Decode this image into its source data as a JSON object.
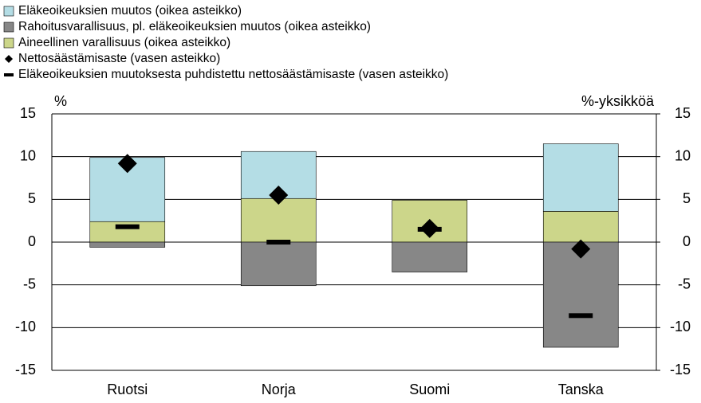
{
  "chart_data": {
    "type": "stacked_bar",
    "y_label": "%",
    "y2_label": "%-yksikköä",
    "categories": [
      "Ruotsi",
      "Norja",
      "Suomi",
      "Tanska"
    ],
    "series": [
      {
        "name": "Eläkeoikeuksien muutos (oikea asteikko)",
        "color": "#b4dde5",
        "axis": "y2",
        "values": [
          7.5,
          5.5,
          0,
          7.9
        ]
      },
      {
        "name": "Rahoitusvarallisuus, pl. eläkeoikeuksien muutos (oikea asteikko)",
        "color": "#878787",
        "axis": "y2",
        "values": [
          -0.6,
          -5.1,
          -3.5,
          -12.3
        ]
      },
      {
        "name": "Aineellinen varallisuus (oikea asteikko)",
        "color": "#ccd68a",
        "axis": "y2",
        "values": [
          2.4,
          5.1,
          4.9,
          3.6
        ]
      },
      {
        "name": "Nettosäästämisaste (vasen asteikko)",
        "color": "#000000",
        "marker": "diamond",
        "values": [
          9.2,
          5.5,
          1.6,
          -0.8
        ]
      },
      {
        "name": "Eläkeoikeuksien muutoksesta puhdistettu nettosäästämisaste (vasen asteikko)",
        "color": "#000000",
        "marker": "dash",
        "values": [
          1.8,
          0,
          1.5,
          -8.6
        ]
      }
    ],
    "ylim": [
      -15,
      15
    ],
    "yticks": [
      -15,
      -10,
      -5,
      0,
      5,
      10,
      15
    ],
    "y2lim": [
      -15,
      15
    ],
    "y2ticks": [
      -15,
      -10,
      -5,
      0,
      5,
      10,
      15
    ],
    "grid": true,
    "legend": "top-left"
  }
}
